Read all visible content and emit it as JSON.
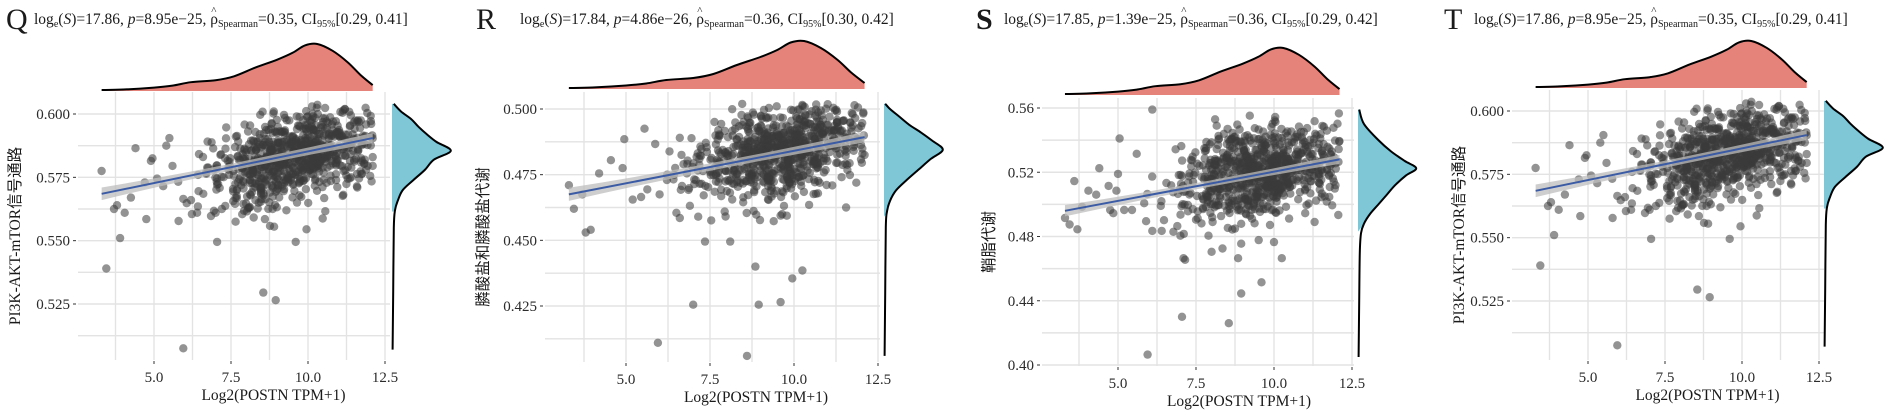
{
  "figure": {
    "panels": [
      {
        "letter": "Q",
        "stats": {
          "logS": "17.86",
          "p": "8.95e−25",
          "rho": "0.35",
          "ci": "[0.29, 0.41]"
        },
        "stats_prefix": "log",
        "stats_sub_e": "e",
        "stats_S": "S",
        "stats_p_label": "p",
        "stats_rho_sub": "Spearman",
        "stats_ci_label": "CI",
        "stats_ci_sub": "95%"
      },
      {
        "letter": "R",
        "stats": {
          "logS": "17.84",
          "p": "4.86e−26",
          "rho": "0.36",
          "ci": "[0.30, 0.42]"
        },
        "stats_prefix": "log",
        "stats_sub_e": "e",
        "stats_S": "S",
        "stats_p_label": "p",
        "stats_rho_sub": "Spearman",
        "stats_ci_label": "CI",
        "stats_ci_sub": "95%"
      },
      {
        "letter": "S",
        "stats": {
          "logS": "17.85",
          "p": "1.39e−25",
          "rho": "0.36",
          "ci": "[0.29, 0.42]"
        },
        "stats_prefix": "log",
        "stats_sub_e": "e",
        "stats_S": "S",
        "stats_p_label": "p",
        "stats_rho_sub": "Spearman",
        "stats_ci_label": "CI",
        "stats_ci_sub": "95%"
      },
      {
        "letter": "T",
        "stats": {
          "logS": "17.86",
          "p": "8.95e−25",
          "rho": "0.35",
          "ci": "[0.29, 0.41]"
        },
        "stats_prefix": "log",
        "stats_sub_e": "e",
        "stats_S": "S",
        "stats_p_label": "p",
        "stats_rho_sub": "Spearman",
        "stats_ci_label": "CI",
        "stats_ci_sub": "95%"
      }
    ],
    "colors": {
      "point": "#3a3a3a",
      "regression_line": "#3b5ba5",
      "ci_band": "#bdbdbd",
      "x_density_fill": "#e5837b",
      "y_density_fill": "#7fc6d6",
      "density_outline": "#000000",
      "grid": "#e3e3e3"
    }
  },
  "chart_data": [
    {
      "type": "scatter",
      "panel": "Q",
      "title": "log_e(S)=17.86, p=8.95e−25, ρ̂_Spearman=0.35, CI_95%[0.29, 0.41]",
      "xlabel": "Log2(POSTN TPM+1)",
      "ylabel": "PI3K-AKT-mTOR信号通路",
      "xlim": [
        2.9,
        12.6
      ],
      "ylim": [
        0.503,
        0.607
      ],
      "x_ticks": [
        5.0,
        7.5,
        10.0,
        12.5
      ],
      "x_tick_labels": [
        "5.0",
        "7.5",
        "10.0",
        "12.5"
      ],
      "y_ticks": [
        0.525,
        0.55,
        0.575,
        0.6
      ],
      "y_tick_labels": [
        "0.525",
        "0.550",
        "0.575",
        "0.600"
      ],
      "grid": true,
      "regression": {
        "x": [
          3.3,
          12.1
        ],
        "y": [
          0.5685,
          0.5905
        ],
        "ci_halfwidth_ends": 0.0025
      },
      "cluster": {
        "n": 780,
        "x_mean": 9.6,
        "x_sd": 1.25,
        "y_mean": 0.5835,
        "y_sd": 0.0085,
        "seed": 11
      },
      "outliers": [
        [
          3.3,
          0.5775
        ],
        [
          3.45,
          0.539
        ],
        [
          3.7,
          0.5625
        ],
        [
          3.8,
          0.564
        ],
        [
          3.9,
          0.551
        ],
        [
          4.05,
          0.561
        ],
        [
          4.25,
          0.567
        ],
        [
          4.4,
          0.5865
        ],
        [
          4.7,
          0.573
        ],
        [
          4.75,
          0.5585
        ],
        [
          4.9,
          0.5815
        ],
        [
          4.95,
          0.5825
        ],
        [
          5.1,
          0.5745
        ],
        [
          5.3,
          0.5715
        ],
        [
          5.4,
          0.5875
        ],
        [
          5.5,
          0.5905
        ],
        [
          5.6,
          0.5795
        ],
        [
          5.95,
          0.5075
        ],
        [
          5.95,
          0.5665
        ],
        [
          6.2,
          0.566
        ],
        [
          6.4,
          0.561
        ],
        [
          6.6,
          0.5685
        ],
        [
          7.0,
          0.561
        ],
        [
          7.05,
          0.5495
        ],
        [
          7.2,
          0.5625
        ],
        [
          7.65,
          0.5575
        ],
        [
          7.9,
          0.5645
        ],
        [
          8.1,
          0.563
        ],
        [
          8.4,
          0.565
        ],
        [
          8.55,
          0.5295
        ],
        [
          8.6,
          0.5585
        ],
        [
          8.85,
          0.5625
        ],
        [
          8.9,
          0.5555
        ],
        [
          8.95,
          0.5265
        ],
        [
          9.3,
          0.562
        ],
        [
          9.6,
          0.5495
        ],
        [
          9.95,
          0.5545
        ],
        [
          11.6,
          0.571
        ],
        [
          12.1,
          0.5795
        ],
        [
          12.1,
          0.583
        ]
      ],
      "x_density": {
        "x": [
          3.3,
          4.0,
          5.0,
          5.6,
          6.2,
          7.0,
          7.6,
          8.3,
          9.0,
          9.5,
          9.9,
          10.3,
          10.8,
          11.3,
          11.7,
          12.1
        ],
        "density": [
          0.02,
          0.03,
          0.07,
          0.11,
          0.18,
          0.22,
          0.3,
          0.48,
          0.64,
          0.78,
          0.93,
          0.96,
          0.82,
          0.58,
          0.33,
          0.12
        ]
      },
      "y_density": {
        "y": [
          0.507,
          0.53,
          0.555,
          0.562,
          0.566,
          0.57,
          0.574,
          0.578,
          0.582,
          0.5855,
          0.589,
          0.592,
          0.595,
          0.598,
          0.601,
          0.604
        ],
        "density": [
          0.01,
          0.02,
          0.03,
          0.05,
          0.1,
          0.18,
          0.36,
          0.55,
          0.7,
          0.98,
          0.74,
          0.58,
          0.44,
          0.32,
          0.15,
          0.03
        ],
        "filled_from": 0.5615
      }
    },
    {
      "type": "scatter",
      "panel": "R",
      "title": "log_e(S)=17.84, p=4.86e−26, ρ̂_Spearman=0.36, CI_95%[0.30, 0.42]",
      "xlabel": "Log2(POSTN TPM+1)",
      "ylabel": "膦酸盐和膦酸盐代谢",
      "xlim": [
        2.9,
        12.6
      ],
      "ylim": [
        0.403,
        0.505
      ],
      "x_ticks": [
        5.0,
        7.5,
        10.0,
        12.5
      ],
      "x_tick_labels": [
        "5.0",
        "7.5",
        "10.0",
        "12.5"
      ],
      "y_ticks": [
        0.425,
        0.45,
        0.475,
        0.5
      ],
      "y_tick_labels": [
        "0.425",
        "0.450",
        "0.475",
        "0.500"
      ],
      "grid": true,
      "regression": {
        "x": [
          3.3,
          12.1
        ],
        "y": [
          0.4675,
          0.4893
        ],
        "ci_halfwidth_ends": 0.0025
      },
      "cluster": {
        "n": 780,
        "x_mean": 9.6,
        "x_sd": 1.25,
        "y_mean": 0.4835,
        "y_sd": 0.0082,
        "seed": 23
      },
      "outliers": [
        [
          3.3,
          0.471
        ],
        [
          3.45,
          0.462
        ],
        [
          3.7,
          0.4675
        ],
        [
          3.8,
          0.453
        ],
        [
          3.95,
          0.454
        ],
        [
          4.2,
          0.4755
        ],
        [
          4.55,
          0.4805
        ],
        [
          4.9,
          0.4775
        ],
        [
          4.95,
          0.4885
        ],
        [
          5.2,
          0.4655
        ],
        [
          5.45,
          0.4665
        ],
        [
          5.55,
          0.4925
        ],
        [
          5.95,
          0.411
        ],
        [
          6.0,
          0.4675
        ],
        [
          6.5,
          0.4605
        ],
        [
          6.6,
          0.4585
        ],
        [
          7.0,
          0.4255
        ],
        [
          7.15,
          0.459
        ],
        [
          7.35,
          0.4495
        ],
        [
          8.1,
          0.4495
        ],
        [
          8.6,
          0.406
        ],
        [
          8.85,
          0.44
        ],
        [
          8.95,
          0.4255
        ],
        [
          9.6,
          0.4265
        ],
        [
          9.65,
          0.46
        ],
        [
          9.95,
          0.4355
        ],
        [
          10.25,
          0.4385
        ],
        [
          10.45,
          0.4635
        ],
        [
          11.55,
          0.4625
        ],
        [
          12.1,
          0.4825
        ]
      ],
      "x_density": {
        "x": [
          3.3,
          4.0,
          5.0,
          5.6,
          6.2,
          7.0,
          7.6,
          8.3,
          9.0,
          9.5,
          9.9,
          10.3,
          10.8,
          11.3,
          11.7,
          12.1
        ],
        "density": [
          0.02,
          0.03,
          0.07,
          0.11,
          0.18,
          0.22,
          0.3,
          0.48,
          0.64,
          0.78,
          0.93,
          0.96,
          0.82,
          0.58,
          0.33,
          0.12
        ]
      },
      "y_density": {
        "y": [
          0.406,
          0.43,
          0.455,
          0.461,
          0.465,
          0.469,
          0.473,
          0.477,
          0.481,
          0.4845,
          0.488,
          0.491,
          0.494,
          0.497,
          0.5,
          0.502
        ],
        "density": [
          0.01,
          0.02,
          0.03,
          0.05,
          0.1,
          0.2,
          0.38,
          0.58,
          0.78,
          0.98,
          0.8,
          0.62,
          0.42,
          0.26,
          0.1,
          0.02
        ],
        "filled_from": 0.459
      }
    },
    {
      "type": "scatter",
      "panel": "S",
      "title": "log_e(S)=17.85, p=1.39e−25, ρ̂_Spearman=0.36, CI_95%[0.29, 0.42]",
      "xlabel": "Log2(POSTN TPM+1)",
      "ylabel": "鞘脂代谢",
      "xlim": [
        2.9,
        12.6
      ],
      "ylim": [
        0.398,
        0.568
      ],
      "x_ticks": [
        5.0,
        7.5,
        10.0,
        12.5
      ],
      "x_tick_labels": [
        "5.0",
        "7.5",
        "10.0",
        "12.5"
      ],
      "y_ticks": [
        0.4,
        0.44,
        0.48,
        0.52,
        0.56
      ],
      "y_tick_labels": [
        "0.40",
        "0.44",
        "0.48",
        "0.52",
        "0.56"
      ],
      "grid": true,
      "regression": {
        "x": [
          3.3,
          12.1
        ],
        "y": [
          0.496,
          0.528
        ],
        "ci_halfwidth_ends": 0.0035
      },
      "cluster": {
        "n": 780,
        "x_mean": 9.6,
        "x_sd": 1.25,
        "y_mean": 0.52,
        "y_sd": 0.0135,
        "seed": 37
      },
      "outliers": [
        [
          3.3,
          0.4915
        ],
        [
          3.45,
          0.4875
        ],
        [
          3.6,
          0.5145
        ],
        [
          3.7,
          0.4845
        ],
        [
          3.85,
          0.4985
        ],
        [
          4.05,
          0.5085
        ],
        [
          4.3,
          0.506
        ],
        [
          4.4,
          0.5225
        ],
        [
          4.7,
          0.5115
        ],
        [
          4.75,
          0.4965
        ],
        [
          4.85,
          0.4945
        ],
        [
          4.95,
          0.5085
        ],
        [
          5.0,
          0.519
        ],
        [
          5.05,
          0.541
        ],
        [
          5.2,
          0.4965
        ],
        [
          5.45,
          0.4965
        ],
        [
          5.6,
          0.5315
        ],
        [
          5.95,
          0.4065
        ],
        [
          5.9,
          0.4895
        ],
        [
          6.1,
          0.559
        ],
        [
          6.1,
          0.4835
        ],
        [
          6.4,
          0.4835
        ],
        [
          6.9,
          0.4865
        ],
        [
          7.0,
          0.4805
        ],
        [
          7.05,
          0.43
        ],
        [
          7.1,
          0.4665
        ],
        [
          7.15,
          0.4655
        ],
        [
          7.9,
          0.4805
        ],
        [
          8.0,
          0.4705
        ],
        [
          8.35,
          0.4725
        ],
        [
          8.55,
          0.426
        ],
        [
          8.85,
          0.4665
        ],
        [
          8.95,
          0.4445
        ],
        [
          8.95,
          0.4755
        ],
        [
          9.6,
          0.4515
        ],
        [
          10.0,
          0.4765
        ],
        [
          10.25,
          0.4665
        ],
        [
          11.0,
          0.4945
        ],
        [
          11.3,
          0.489
        ]
      ],
      "x_density": {
        "x": [
          3.3,
          4.0,
          5.0,
          5.6,
          6.2,
          7.0,
          7.6,
          8.3,
          9.0,
          9.5,
          9.9,
          10.3,
          10.8,
          11.3,
          11.7,
          12.1
        ],
        "density": [
          0.02,
          0.03,
          0.07,
          0.11,
          0.18,
          0.22,
          0.3,
          0.48,
          0.64,
          0.78,
          0.93,
          0.96,
          0.82,
          0.58,
          0.33,
          0.12
        ]
      },
      "y_density": {
        "y": [
          0.405,
          0.44,
          0.47,
          0.482,
          0.488,
          0.494,
          0.5,
          0.506,
          0.512,
          0.518,
          0.5225,
          0.527,
          0.533,
          0.54,
          0.55,
          0.559
        ],
        "density": [
          0.01,
          0.02,
          0.03,
          0.05,
          0.1,
          0.2,
          0.34,
          0.48,
          0.62,
          0.8,
          0.97,
          0.78,
          0.55,
          0.34,
          0.1,
          0.02
        ],
        "filled_from": 0.483
      }
    },
    {
      "type": "scatter",
      "panel": "T",
      "title": "log_e(S)=17.86, p=8.95e−25, ρ̂_Spearman=0.35, CI_95%[0.29, 0.41]",
      "xlabel": "Log2(POSTN TPM+1)",
      "ylabel": "PI3K-AKT-mTOR信号通路",
      "xlim": [
        2.9,
        12.6
      ],
      "ylim": [
        0.503,
        0.607
      ],
      "x_ticks": [
        5.0,
        7.5,
        10.0,
        12.5
      ],
      "x_tick_labels": [
        "5.0",
        "7.5",
        "10.0",
        "12.5"
      ],
      "y_ticks": [
        0.525,
        0.55,
        0.575,
        0.6
      ],
      "y_tick_labels": [
        "0.525",
        "0.550",
        "0.575",
        "0.600"
      ],
      "grid": true,
      "regression": {
        "x": [
          3.3,
          12.1
        ],
        "y": [
          0.5685,
          0.5905
        ],
        "ci_halfwidth_ends": 0.0025
      },
      "cluster": {
        "n": 780,
        "x_mean": 9.6,
        "x_sd": 1.25,
        "y_mean": 0.5835,
        "y_sd": 0.0085,
        "seed": 11
      },
      "outliers": [
        [
          3.3,
          0.5775
        ],
        [
          3.45,
          0.539
        ],
        [
          3.7,
          0.5625
        ],
        [
          3.8,
          0.564
        ],
        [
          3.9,
          0.551
        ],
        [
          4.05,
          0.561
        ],
        [
          4.25,
          0.567
        ],
        [
          4.4,
          0.5865
        ],
        [
          4.7,
          0.573
        ],
        [
          4.75,
          0.5585
        ],
        [
          4.9,
          0.5815
        ],
        [
          4.95,
          0.5825
        ],
        [
          5.1,
          0.5745
        ],
        [
          5.3,
          0.5715
        ],
        [
          5.4,
          0.5875
        ],
        [
          5.5,
          0.5905
        ],
        [
          5.6,
          0.5795
        ],
        [
          5.95,
          0.5075
        ],
        [
          5.95,
          0.5665
        ],
        [
          6.2,
          0.566
        ],
        [
          6.4,
          0.561
        ],
        [
          6.6,
          0.5685
        ],
        [
          7.0,
          0.561
        ],
        [
          7.05,
          0.5495
        ],
        [
          7.2,
          0.5625
        ],
        [
          7.65,
          0.5575
        ],
        [
          7.9,
          0.5645
        ],
        [
          8.1,
          0.563
        ],
        [
          8.4,
          0.565
        ],
        [
          8.55,
          0.5295
        ],
        [
          8.6,
          0.5585
        ],
        [
          8.85,
          0.5625
        ],
        [
          8.9,
          0.5555
        ],
        [
          8.95,
          0.5265
        ],
        [
          9.3,
          0.562
        ],
        [
          9.6,
          0.5495
        ],
        [
          9.95,
          0.5545
        ],
        [
          11.6,
          0.571
        ],
        [
          12.1,
          0.5795
        ],
        [
          12.1,
          0.583
        ]
      ],
      "x_density": {
        "x": [
          3.3,
          4.0,
          5.0,
          5.6,
          6.2,
          7.0,
          7.6,
          8.3,
          9.0,
          9.5,
          9.9,
          10.3,
          10.8,
          11.3,
          11.7,
          12.1
        ],
        "density": [
          0.02,
          0.03,
          0.07,
          0.11,
          0.18,
          0.22,
          0.3,
          0.48,
          0.64,
          0.78,
          0.93,
          0.96,
          0.82,
          0.58,
          0.33,
          0.12
        ]
      },
      "y_density": {
        "y": [
          0.507,
          0.53,
          0.555,
          0.562,
          0.566,
          0.57,
          0.574,
          0.578,
          0.582,
          0.5855,
          0.589,
          0.592,
          0.595,
          0.598,
          0.601,
          0.604
        ],
        "density": [
          0.01,
          0.02,
          0.03,
          0.05,
          0.1,
          0.18,
          0.36,
          0.55,
          0.7,
          0.98,
          0.74,
          0.58,
          0.44,
          0.32,
          0.15,
          0.03
        ],
        "filled_from": 0.5615
      }
    }
  ]
}
